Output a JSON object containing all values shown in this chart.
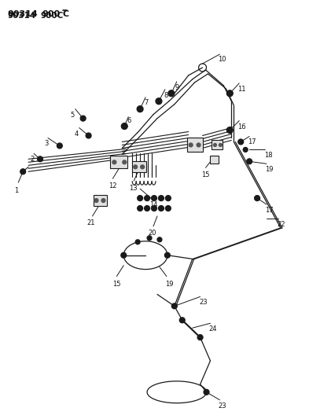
{
  "title": "90314  900C",
  "bg_color": "#ffffff",
  "line_color": "#1a1a1a",
  "text_color": "#111111",
  "fig_width": 3.93,
  "fig_height": 5.33,
  "dpi": 100
}
